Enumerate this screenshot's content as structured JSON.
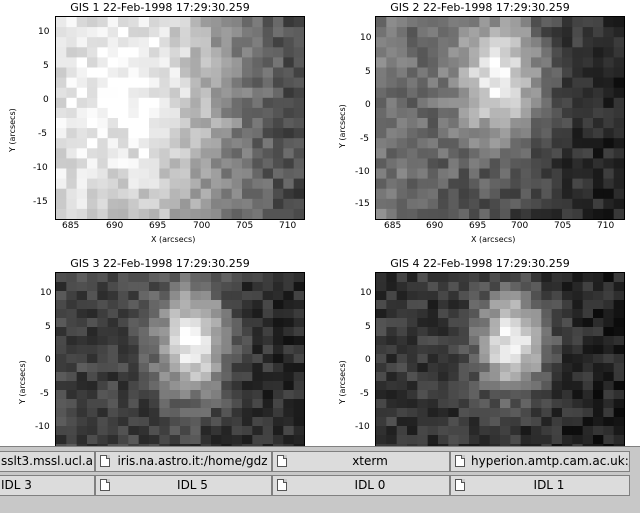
{
  "panels": [
    {
      "title": "GIS 1 22-Feb-1998 17:29:30.259",
      "xlabel": "X (arcsecs)",
      "ylabel": "Y (arcsecs)",
      "xticks": [
        "685",
        "690",
        "695",
        "700",
        "705",
        "710"
      ],
      "yticks": [
        "10",
        "5",
        "0",
        "-5",
        "-10",
        "-15"
      ]
    },
    {
      "title": "GIS 2 22-Feb-1998 17:29:30.259",
      "xlabel": "X (arcsecs)",
      "ylabel": "Y (arcsecs)",
      "xticks": [
        "685",
        "690",
        "695",
        "700",
        "705",
        "710"
      ],
      "yticks": [
        "10",
        "5",
        "0",
        "-5",
        "-10",
        "-15"
      ]
    },
    {
      "title": "GIS 3 22-Feb-1998 17:29:30.259",
      "xlabel": "",
      "ylabel": "Y (arcsecs)",
      "xticks": [],
      "yticks": [
        "10",
        "5",
        "0",
        "-5",
        "-10"
      ]
    },
    {
      "title": "GIS 4 22-Feb-1998 17:29:30.259",
      "xlabel": "",
      "ylabel": "Y (arcsecs)",
      "xticks": [],
      "yticks": [
        "10",
        "5",
        "0",
        "-5",
        "-10"
      ]
    }
  ],
  "taskbar": {
    "row1": [
      {
        "label": "sslt3.mssl.ucl.a",
        "icon": "window-icon"
      },
      {
        "label": "iris.na.astro.it:/home/gdz",
        "icon": "window-icon"
      },
      {
        "label": "xterm",
        "icon": "window-icon"
      },
      {
        "label": "hyperion.amtp.cam.ac.uk:/",
        "icon": "window-icon"
      }
    ],
    "row2": [
      {
        "label": "IDL 3",
        "icon": "window-icon"
      },
      {
        "label": "IDL 5",
        "icon": "window-icon"
      },
      {
        "label": "IDL 0",
        "icon": "window-icon"
      },
      {
        "label": "IDL 1",
        "icon": "window-icon"
      }
    ]
  }
}
